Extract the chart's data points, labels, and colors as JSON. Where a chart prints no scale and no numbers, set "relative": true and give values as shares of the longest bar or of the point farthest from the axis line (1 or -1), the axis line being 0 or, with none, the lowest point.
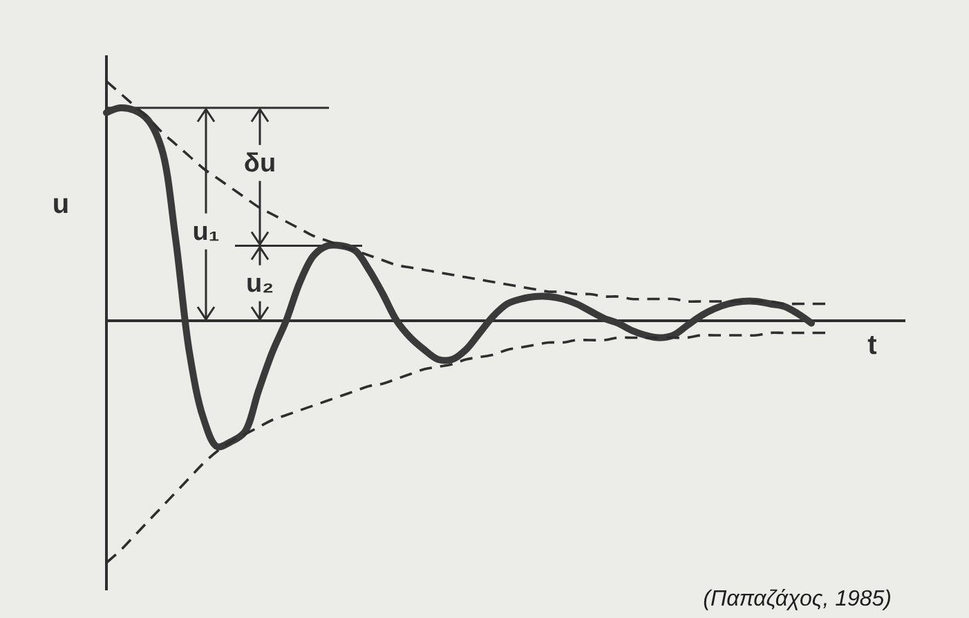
{
  "chart_data": {
    "type": "line",
    "relative": true,
    "xlabel": "t",
    "ylabel": "u",
    "categories": [
      null,
      null,
      null,
      null,
      null,
      null,
      null,
      null,
      null,
      null,
      null,
      null,
      null,
      null,
      null,
      null,
      null,
      null,
      null,
      null,
      null,
      null,
      null,
      null,
      null,
      null,
      null,
      null,
      null,
      null,
      null,
      null,
      null,
      null,
      null,
      null,
      null,
      null,
      null,
      null,
      null,
      null,
      null,
      null,
      null,
      null,
      null,
      null,
      null,
      null,
      null,
      null,
      null
    ],
    "series": [
      {
        "color": "#3a3a3a",
        "line_style": "solid",
        "values": [
          0.86,
          0.88,
          0.87,
          0.83,
          0.71,
          0.34,
          -0.13,
          -0.4,
          -0.52,
          -0.5,
          -0.46,
          -0.29,
          -0.13,
          0,
          0.16,
          0.27,
          0.31,
          0.31,
          0.29,
          0.21,
          0.11,
          0,
          -0.07,
          -0.12,
          -0.16,
          -0.16,
          -0.12,
          -0.05,
          0.02,
          0.07,
          0.09,
          0.1,
          0.1,
          0.09,
          0.07,
          0.04,
          0.01,
          -0.01,
          -0.04,
          -0.06,
          -0.07,
          -0.06,
          -0.02,
          0.02,
          0.05,
          0.07,
          0.08,
          0.08,
          0.07,
          0.06,
          0.03,
          -0.01,
          null
        ]
      },
      {
        "color": "#2e2e2e",
        "line_style": "dashed",
        "values": [
          0.99,
          0.94,
          0.89,
          0.84,
          0.78,
          0.73,
          0.68,
          0.63,
          0.59,
          0.55,
          0.51,
          0.47,
          0.44,
          0.41,
          0.38,
          0.35,
          0.33,
          0.31,
          0.29,
          0.27,
          0.25,
          0.23,
          0.22,
          0.21,
          0.2,
          0.19,
          0.18,
          0.17,
          0.16,
          0.15,
          0.14,
          0.13,
          0.12,
          0.12,
          0.11,
          0.11,
          0.1,
          0.1,
          0.09,
          0.09,
          0.09,
          0.09,
          0.08,
          0.08,
          0.08,
          0.08,
          0.08,
          0.08,
          0.08,
          0.07,
          0.07,
          0.07,
          0.07
        ]
      },
      {
        "color": "#2e2e2e",
        "line_style": "dashed",
        "values": [
          -1,
          -0.95,
          -0.89,
          -0.83,
          -0.77,
          -0.71,
          -0.65,
          -0.59,
          -0.54,
          -0.5,
          -0.47,
          -0.44,
          -0.41,
          -0.39,
          -0.37,
          -0.35,
          -0.33,
          -0.31,
          -0.29,
          -0.27,
          -0.26,
          -0.24,
          -0.22,
          -0.2,
          -0.19,
          -0.18,
          -0.16,
          -0.15,
          -0.14,
          -0.12,
          -0.11,
          -0.1,
          -0.09,
          -0.09,
          -0.08,
          -0.08,
          -0.08,
          -0.07,
          -0.07,
          -0.07,
          -0.07,
          -0.07,
          -0.07,
          -0.06,
          -0.06,
          -0.06,
          -0.06,
          -0.06,
          -0.05,
          -0.05,
          -0.05,
          -0.05,
          -0.05
        ]
      }
    ],
    "ref_lines": [
      {
        "axis": "y",
        "value": 0.88
      },
      {
        "axis": "y",
        "value": 0.31
      }
    ],
    "annotations": [
      "δu",
      "u₁",
      "u₂",
      "(Παπαζάχος, 1985)"
    ]
  }
}
